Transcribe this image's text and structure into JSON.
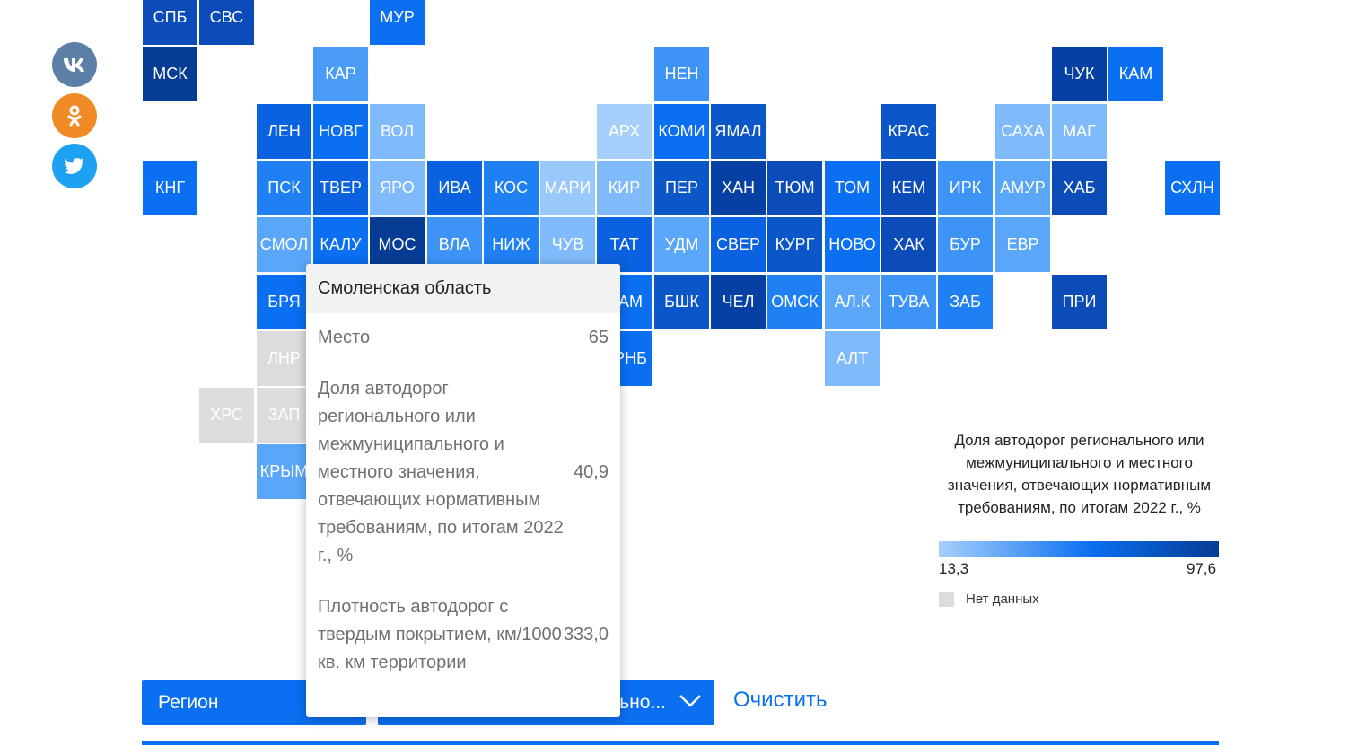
{
  "social": [
    {
      "name": "vk",
      "color": "#5b7fa6"
    },
    {
      "name": "ok",
      "color": "#f08a24"
    },
    {
      "name": "twitter",
      "color": "#1da1f2"
    }
  ],
  "regions": [
    {
      "code": "СПБ",
      "color": "#0b4cb8"
    },
    {
      "code": "СВС",
      "color": "#0b4cb8"
    },
    {
      "code": "МУР",
      "color": "#0a6ff0"
    },
    {
      "code": "МСК",
      "color": "#063c94"
    },
    {
      "code": "КАР",
      "color": "#4b9cf7"
    },
    {
      "code": "НЕН",
      "color": "#3d93f6"
    },
    {
      "code": "ЧУК",
      "color": "#0640a2"
    },
    {
      "code": "КАМ",
      "color": "#0a6ff0"
    },
    {
      "code": "ЛЕН",
      "color": "#0a62e0"
    },
    {
      "code": "НОВГ",
      "color": "#0a6ff0"
    },
    {
      "code": "ВОЛ",
      "color": "#7fbbfb"
    },
    {
      "code": "АРХ",
      "color": "#a6cffc"
    },
    {
      "code": "КОМИ",
      "color": "#0a6ff0"
    },
    {
      "code": "ЯМАЛ",
      "color": "#0b56c8"
    },
    {
      "code": "КРАС",
      "color": "#0b56c8"
    },
    {
      "code": "САХА",
      "color": "#7fbbfb"
    },
    {
      "code": "МАГ",
      "color": "#7fbbfb"
    },
    {
      "code": "КНГ",
      "color": "#0a6ff0"
    },
    {
      "code": "ПСК",
      "color": "#1f80f4"
    },
    {
      "code": "ТВЕР",
      "color": "#0a62e0"
    },
    {
      "code": "ЯРО",
      "color": "#7fbbfb"
    },
    {
      "code": "ИВА",
      "color": "#0a62e0"
    },
    {
      "code": "КОС",
      "color": "#1f80f4"
    },
    {
      "code": "МАРИ",
      "color": "#99c8fb"
    },
    {
      "code": "КИР",
      "color": "#7fbbfb"
    },
    {
      "code": "ПЕР",
      "color": "#0b56c8"
    },
    {
      "code": "ХАН",
      "color": "#0640a2"
    },
    {
      "code": "ТЮМ",
      "color": "#0b4cb8"
    },
    {
      "code": "ТОМ",
      "color": "#0a6ff0"
    },
    {
      "code": "КЕМ",
      "color": "#0b4cb8"
    },
    {
      "code": "ИРК",
      "color": "#3d93f6"
    },
    {
      "code": "АМУР",
      "color": "#5aa6f8"
    },
    {
      "code": "ХАБ",
      "color": "#0b4cb8"
    },
    {
      "code": "СХЛН",
      "color": "#0a6ff0"
    },
    {
      "code": "СМОЛ",
      "color": "#5aa6f8"
    },
    {
      "code": "КАЛУ",
      "color": "#0a6ff0"
    },
    {
      "code": "МОС",
      "color": "#063c94"
    },
    {
      "code": "ВЛА",
      "color": "#3d93f6"
    },
    {
      "code": "НИЖ",
      "color": "#1f80f4"
    },
    {
      "code": "ЧУВ",
      "color": "#7fbbfb"
    },
    {
      "code": "ТАТ",
      "color": "#0a62e0"
    },
    {
      "code": "УДМ",
      "color": "#5aa6f8"
    },
    {
      "code": "СВЕР",
      "color": "#0a62e0"
    },
    {
      "code": "КУРГ",
      "color": "#0b56c8"
    },
    {
      "code": "НОВО",
      "color": "#0a6ff0"
    },
    {
      "code": "ХАК",
      "color": "#0b4cb8"
    },
    {
      "code": "БУР",
      "color": "#3d93f6"
    },
    {
      "code": "ЕВР",
      "color": "#5aa6f8"
    },
    {
      "code": "БРЯ",
      "color": "#0a6ff0"
    },
    {
      "code": "АМ",
      "color": "#0a6ff0"
    },
    {
      "code": "БШК",
      "color": "#0b56c8"
    },
    {
      "code": "ЧЕЛ",
      "color": "#0640a2"
    },
    {
      "code": "ОМСК",
      "color": "#1f80f4"
    },
    {
      "code": "АЛ.К",
      "color": "#5aa6f8"
    },
    {
      "code": "ТУВА",
      "color": "#3d93f6"
    },
    {
      "code": "ЗАБ",
      "color": "#1f80f4"
    },
    {
      "code": "ПРИ",
      "color": "#0b4cb8"
    },
    {
      "code": "ЛНР",
      "color": "#dcdcdc"
    },
    {
      "code": "РНБ",
      "color": "#0a6ff0"
    },
    {
      "code": "АЛТ",
      "color": "#7fbbfb"
    },
    {
      "code": "ХРС",
      "color": "#dcdcdc"
    },
    {
      "code": "ЗАП",
      "color": "#dcdcdc"
    },
    {
      "code": "КРЫМ",
      "color": "#5aa6f8"
    }
  ],
  "tooltip": {
    "region_name": "Смоленская область",
    "rank_label": "Место",
    "rank_value": "65",
    "share_label": "Доля автодорог регионального или межмуниципального и местного значения, отвечающих нормативным требованиям, по итогам 2022 г., %",
    "share_value": "40,9",
    "density_label": "Плотность автодорог с твердым покрытием, км/1000 кв. км территории",
    "density_value": "333,0"
  },
  "legend": {
    "title": "Доля автодорог регионального или межмуниципального и местного значения, отвечающих нормативным требованиям, по итогам 2022 г., %",
    "min": "13,3",
    "max": "97,6",
    "no_data": "Нет данных",
    "color_low": "#a6cffc",
    "color_mid": "#0a6ff0",
    "color_high": "#063c94"
  },
  "filters": {
    "region_label": "Регион",
    "metric_visible": "льно...",
    "clear_label": "Очистить"
  }
}
